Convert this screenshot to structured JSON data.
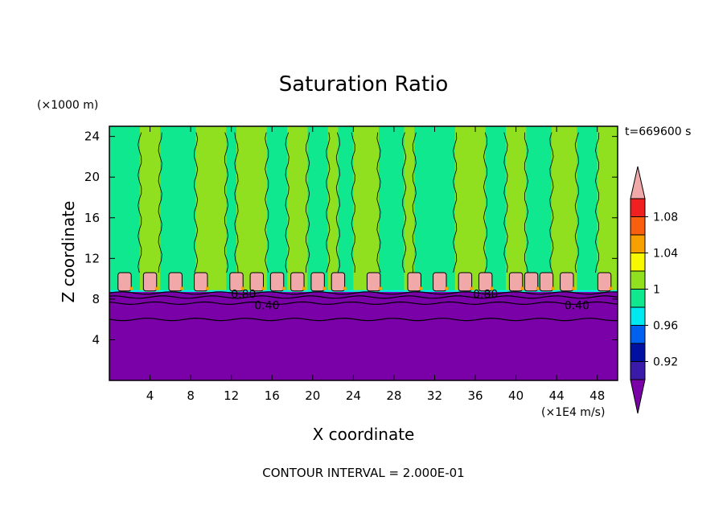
{
  "chart_data": {
    "type": "heatmap",
    "title": "Saturation Ratio",
    "xlabel": "X coordinate",
    "ylabel": "Z coordinate",
    "x_unit": "(×1E4 m/s)",
    "y_unit": "(×1000 m)",
    "time_label": "t=669600 s",
    "footer": "CONTOUR INTERVAL = 2.000E-01",
    "xlim": [
      0,
      50
    ],
    "ylim": [
      0,
      25
    ],
    "x_ticks": [
      4,
      8,
      12,
      16,
      20,
      24,
      28,
      32,
      36,
      40,
      44,
      48
    ],
    "y_ticks": [
      4,
      8,
      12,
      16,
      20,
      24
    ],
    "contour_labels": [
      {
        "text": "0.80",
        "x": 13.2,
        "y": 8.5
      },
      {
        "text": "0.40",
        "x": 15.5,
        "y": 7.4
      },
      {
        "text": "0.80",
        "x": 37.0,
        "y": 8.5
      },
      {
        "text": "0.40",
        "x": 46.0,
        "y": 7.4
      }
    ],
    "colorbar": {
      "levels": [
        "< 0.90",
        "0.90–0.92",
        "0.92–0.94",
        "0.94–0.96",
        "0.96–0.98",
        "0.98–1.00",
        "1.00–1.02",
        "1.02–1.04",
        "1.04–1.06",
        "1.06–1.08",
        "1.08–1.10",
        "> 1.10"
      ],
      "colors": [
        "#7a00a8",
        "#3a1aa8",
        "#0010a0",
        "#0060f0",
        "#00e8f0",
        "#10e890",
        "#90e020",
        "#f8f800",
        "#f8a000",
        "#f86010",
        "#f02020",
        "#f0a8a8"
      ],
      "labels": [
        {
          "text": "0.92",
          "value": 0.92
        },
        {
          "text": "0.96",
          "value": 0.96
        },
        {
          "text": "1",
          "value": 1.0
        },
        {
          "text": "1.04",
          "value": 1.04
        },
        {
          "text": "1.08",
          "value": 1.08
        }
      ]
    },
    "regions": {
      "dry_layer_top": 8.7,
      "cloud_base": 8.8,
      "cloud_top": 10.6,
      "cloud_cells_x": [
        1.5,
        4.0,
        6.5,
        9.0,
        12.5,
        14.5,
        16.5,
        18.5,
        20.5,
        22.5,
        26.0,
        30.0,
        32.5,
        35.0,
        37.0,
        40.0,
        41.5,
        43.0,
        45.0,
        48.7
      ],
      "moist_band_colors": [
        "#10e890",
        "#90e020"
      ],
      "moist_bands_x": [
        0.0,
        3.0,
        5.0,
        8.5,
        11.5,
        12.5,
        15.5,
        17.5,
        19.5,
        21.5,
        22.5,
        24.0,
        26.5,
        29.0,
        30.0,
        34.0,
        37.0,
        39.0,
        41.0,
        43.5,
        46.0,
        48.0,
        50.0
      ]
    }
  }
}
